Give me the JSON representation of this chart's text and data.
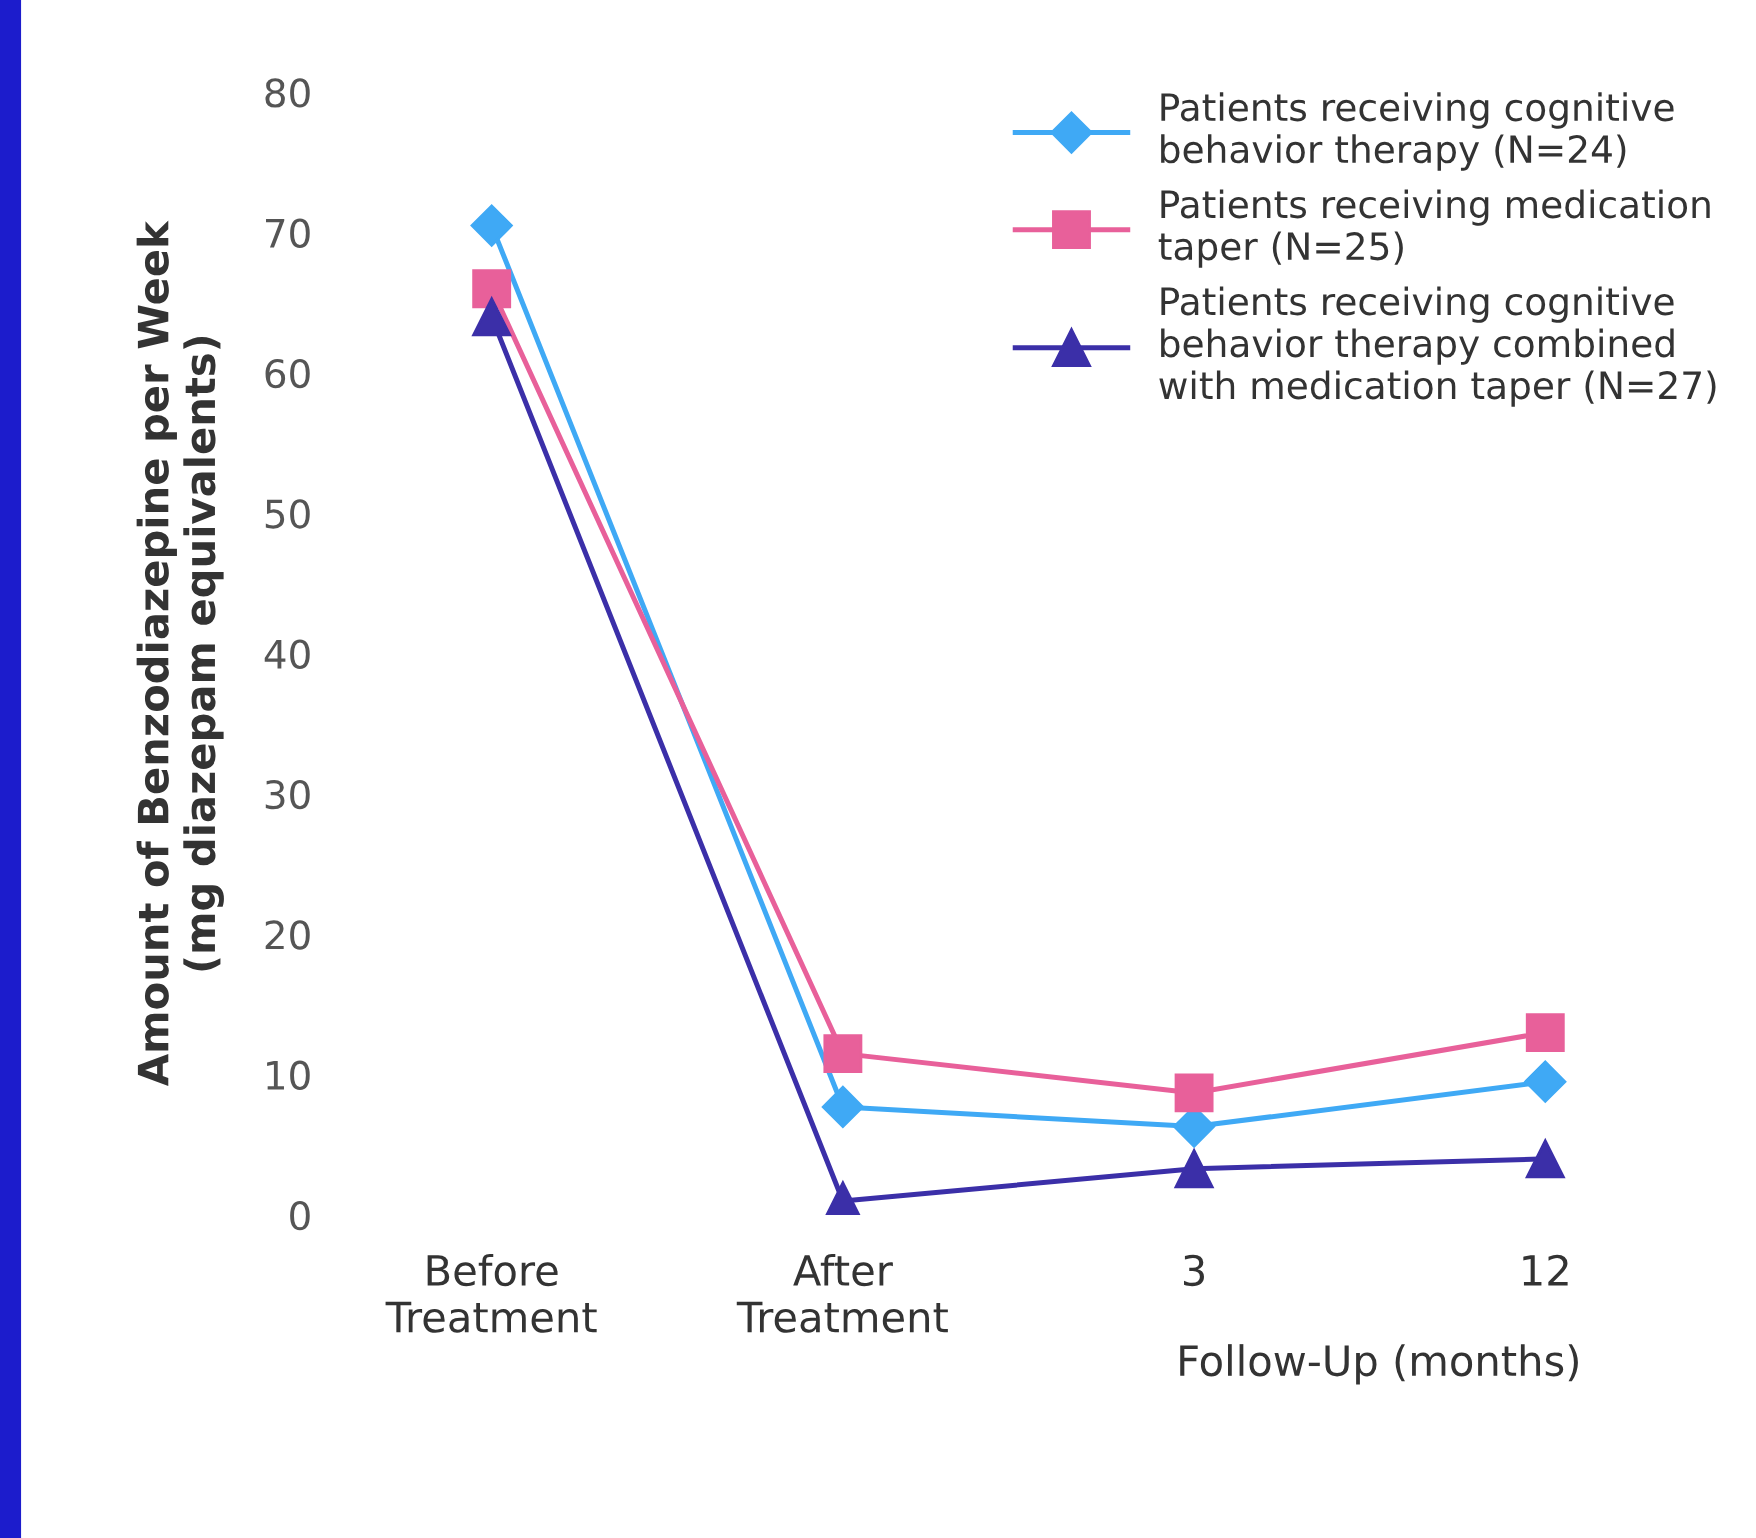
{
  "chart_data": {
    "type": "line",
    "categories": [
      "Before\nTreatment",
      "After\nTreatment",
      "3",
      "12"
    ],
    "xlabel": "Follow-Up (months)",
    "ylabel": "Amount of Benzodiazepine per Week\n(mg diazepam equivalents)",
    "ylim": [
      0,
      80
    ],
    "yticks": [
      0,
      10,
      20,
      30,
      40,
      50,
      60,
      70,
      80
    ],
    "grid": false,
    "legend": "top right",
    "series": [
      {
        "name": "Patients receiving cognitive\nbehavior therapy (N=24)",
        "color": "#3fa9f5",
        "marker": "diamond",
        "values": [
          70.5,
          7.7,
          6.3,
          9.5
        ]
      },
      {
        "name": "Patients receiving medication\ntaper (N=25)",
        "color": "#e8609a",
        "marker": "square",
        "values": [
          66,
          11.5,
          8.7,
          13
        ]
      },
      {
        "name": "Patients receiving cognitive\nbehavior therapy combined\nwith medication taper (N=27)",
        "color": "#3b2fa8",
        "marker": "triangle",
        "values": [
          64,
          1,
          3.3,
          4
        ]
      }
    ]
  }
}
